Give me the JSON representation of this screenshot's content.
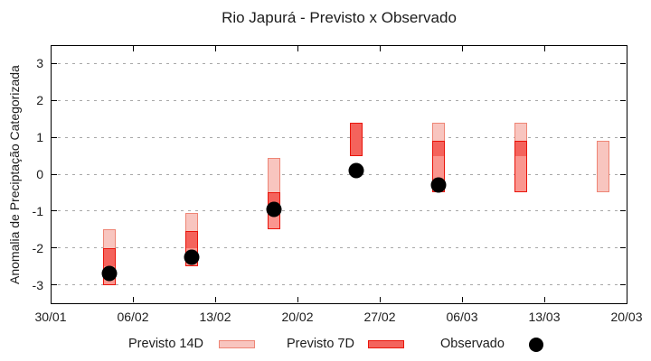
{
  "chart_data": {
    "type": "candlestick",
    "title": "Rio Japurá - Previsto x Observado",
    "xlabel": "",
    "ylabel": "Anomalia de Preciptação Categorizada",
    "ylim": [
      -3.5,
      3.5
    ],
    "yticks": [
      3,
      2,
      1,
      0,
      -1,
      -2,
      -3
    ],
    "x_axis": {
      "span_days": 49,
      "ticks": [
        {
          "day": 0,
          "label": "30/01"
        },
        {
          "day": 7,
          "label": "06/02"
        },
        {
          "day": 14,
          "label": "13/02"
        },
        {
          "day": 21,
          "label": "20/02"
        },
        {
          "day": 28,
          "label": "27/02"
        },
        {
          "day": 35,
          "label": "06/03"
        },
        {
          "day": 42,
          "label": "13/03"
        },
        {
          "day": 49,
          "label": "20/03"
        }
      ]
    },
    "grid": {
      "horizontal": true,
      "style": "dotted",
      "color": "#a8a8a8"
    },
    "legend": [
      {
        "label": "Previsto 14D",
        "swatch": "box",
        "fill": "#f8c5bf",
        "border": "#ee8575"
      },
      {
        "label": "Previsto 7D",
        "swatch": "box",
        "fill": "#f4635c",
        "border": "#e9140a"
      },
      {
        "label": "Observado",
        "swatch": "dot",
        "fill": "#000000"
      }
    ],
    "series": [
      {
        "name": "Previsto 14D",
        "type": "range",
        "points": [
          {
            "date": "04/02",
            "day": 5,
            "high": -1.5,
            "low": -3.0
          },
          {
            "date": "11/02",
            "day": 12,
            "high": -1.05,
            "low": -2.5
          },
          {
            "date": "18/02",
            "day": 19,
            "high": 0.45,
            "low": -1.5
          },
          {
            "date": "04/03",
            "day": 33,
            "high": 1.4,
            "low": -0.5
          },
          {
            "date": "11/03",
            "day": 40,
            "high": 1.4,
            "low": -0.5
          },
          {
            "date": "18/03",
            "day": 47,
            "high": 0.9,
            "low": -0.5
          }
        ]
      },
      {
        "name": "Previsto 7D",
        "type": "range",
        "points": [
          {
            "date": "04/02",
            "day": 5,
            "high": -2.0,
            "low": -3.0,
            "mid": -2.5
          },
          {
            "date": "11/02",
            "day": 12,
            "high": -1.55,
            "low": -2.5,
            "mid": -2.0
          },
          {
            "date": "18/02",
            "day": 19,
            "high": -0.5,
            "low": -1.5,
            "mid": -1.0
          },
          {
            "date": "25/02",
            "day": 26,
            "high": 1.4,
            "low": 0.5
          },
          {
            "date": "04/03",
            "day": 33,
            "high": 0.9,
            "low": -0.5,
            "mid": 0.5
          },
          {
            "date": "11/03",
            "day": 40,
            "high": 0.9,
            "low": -0.5,
            "mid": 0.5
          }
        ]
      },
      {
        "name": "Observado",
        "type": "point",
        "points": [
          {
            "date": "04/02",
            "day": 5,
            "value": -2.7
          },
          {
            "date": "11/02",
            "day": 12,
            "value": -2.25
          },
          {
            "date": "18/02",
            "day": 19,
            "value": -0.95
          },
          {
            "date": "25/02",
            "day": 26,
            "value": 0.1
          },
          {
            "date": "04/03",
            "day": 33,
            "value": -0.3
          }
        ]
      }
    ],
    "colors": {
      "p14_fill": "#f8c5bf",
      "p14_border": "#ee8575",
      "p7_fill_dark": "#f4635c",
      "p7_fill_light": "#fa968f",
      "p7_border": "#e9140a",
      "observed": "#000000",
      "axis": "#000000",
      "grid": "#a8a8a8",
      "text": "#1c1c1c",
      "background": "#ffffff"
    }
  }
}
